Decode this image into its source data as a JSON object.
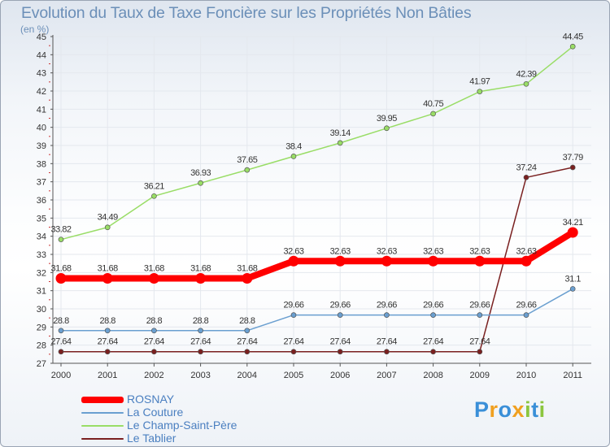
{
  "chart_data": {
    "type": "line",
    "title": "Evolution du Taux de Taxe Foncière sur les Propriétés Non Bâties",
    "ylabel": "(en %)",
    "xlabel": "",
    "ylim": [
      27,
      45
    ],
    "yticks": [
      "27",
      "28",
      "29",
      "30",
      "31",
      "32",
      "33",
      "34",
      "35",
      "36",
      "37",
      "38",
      "39",
      "40",
      "41",
      "42",
      "43",
      "44",
      "45"
    ],
    "categories": [
      "2000",
      "2001",
      "2002",
      "2003",
      "2004",
      "2005",
      "2006",
      "2007",
      "2008",
      "2009",
      "2010",
      "2011"
    ],
    "series": [
      {
        "name": "ROSNAY",
        "color": "#ff0000",
        "values": [
          31.68,
          31.68,
          31.68,
          31.68,
          31.68,
          32.63,
          32.63,
          32.63,
          32.63,
          32.63,
          32.63,
          34.21
        ],
        "labels": [
          "31.68",
          "31.68",
          "31.68",
          "31.68",
          "31.68",
          "32.63",
          "32.63",
          "32.63",
          "32.63",
          "32.63",
          "32.63",
          "34.21"
        ]
      },
      {
        "name": "La Couture",
        "color": "#6a9fd0",
        "values": [
          28.8,
          28.8,
          28.8,
          28.8,
          28.8,
          29.66,
          29.66,
          29.66,
          29.66,
          29.66,
          29.66,
          31.1
        ],
        "labels": [
          "28.8",
          "28.8",
          "28.8",
          "28.8",
          "28.8",
          "29.66",
          "29.66",
          "29.66",
          "29.66",
          "29.66",
          "29.66",
          "31.1"
        ]
      },
      {
        "name": "Le Champ-Saint-Père",
        "color": "#99dd66",
        "values": [
          33.82,
          34.49,
          36.21,
          36.93,
          37.65,
          38.4,
          39.14,
          39.95,
          40.75,
          41.97,
          42.39,
          44.45
        ],
        "labels": [
          "33.82",
          "34.49",
          "36.21",
          "36.93",
          "37.65",
          "38.4",
          "39.14",
          "39.95",
          "40.75",
          "41.97",
          "42.39",
          "44.45"
        ]
      },
      {
        "name": "Le Tablier",
        "color": "#7a2020",
        "values": [
          27.64,
          27.64,
          27.64,
          27.64,
          27.64,
          27.64,
          27.64,
          27.64,
          27.64,
          27.64,
          37.24,
          37.79
        ],
        "labels": [
          "27.64",
          "27.64",
          "27.64",
          "27.64",
          "27.64",
          "27.64",
          "27.64",
          "27.64",
          "27.64",
          "27.64",
          "37.24",
          "37.79"
        ]
      }
    ],
    "legend": [
      "ROSNAY",
      "La Couture",
      "Le Champ-Saint-Père",
      "Le Tablier"
    ]
  },
  "logo": {
    "letters": [
      "P",
      "r",
      "o",
      "x",
      "i",
      "t",
      "i"
    ],
    "colors": [
      "#3a8fd8",
      "#f0a020",
      "#3a8fd8",
      "#f0a020",
      "#8cc63f",
      "#3a8fd8",
      "#8cc63f"
    ]
  }
}
